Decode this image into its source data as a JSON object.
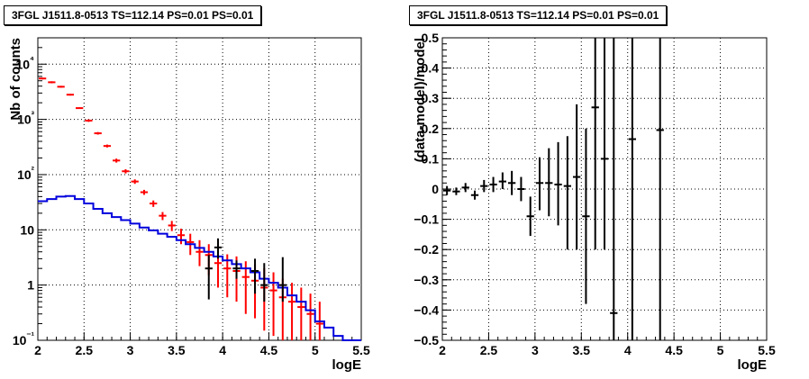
{
  "chart_data": [
    {
      "type": "step",
      "title": "3FGL J1511.8-0513 TS=112.14 PS=0.01 PS=0.01",
      "xlabel": "logE",
      "ylabel": "Nb of counts",
      "xlim": [
        2,
        5.5
      ],
      "ylim": [
        0.1,
        30000
      ],
      "yscale": "log",
      "grid": true,
      "x_ticks": [
        "2",
        "2.5",
        "3",
        "3.5",
        "4",
        "4.5",
        "5",
        "5.5"
      ],
      "y_ticks": [
        "10⁻¹",
        "1",
        "10",
        "10²",
        "10³",
        "10⁴"
      ],
      "series": [
        {
          "color": "#ff0000",
          "style": "points-with-errors",
          "x": [
            2.05,
            2.15,
            2.25,
            2.35,
            2.45,
            2.55,
            2.65,
            2.75,
            2.85,
            2.95,
            3.05,
            3.15,
            3.25,
            3.35,
            3.45,
            3.55,
            3.65,
            3.75,
            3.85,
            3.95,
            4.05,
            4.15,
            4.25,
            4.35,
            4.45,
            4.55,
            4.65,
            4.75,
            4.85,
            4.95,
            5.05
          ],
          "y": [
            5500,
            4700,
            3900,
            2800,
            1600,
            950,
            560,
            330,
            180,
            115,
            75,
            48,
            30,
            18,
            12,
            8,
            6,
            4,
            3.5,
            2.5,
            2,
            1.8,
            1.4,
            1.2,
            0.9,
            0.8,
            0.6,
            0.5,
            0.4,
            0.3,
            0.2
          ],
          "ylo": [
            5300,
            4500,
            3750,
            2700,
            1550,
            900,
            530,
            310,
            165,
            105,
            68,
            43,
            26,
            15,
            9.5,
            5.5,
            3.5,
            2.2,
            1.5,
            0.9,
            0.6,
            0.5,
            0.3,
            0.25,
            0.15,
            0.12,
            0.1,
            0.1,
            0.1,
            0.1,
            0.1
          ],
          "yhi": [
            5700,
            4900,
            4050,
            2900,
            1650,
            1000,
            590,
            350,
            195,
            125,
            82,
            53,
            34,
            21,
            14.5,
            10.5,
            8.5,
            6.5,
            5.5,
            4.3,
            3.6,
            3.3,
            2.7,
            2.4,
            2.0,
            1.7,
            1.3,
            1.1,
            0.9,
            0.7,
            0.5
          ]
        },
        {
          "color": "#0000dd",
          "style": "step",
          "x": [
            2.05,
            2.15,
            2.25,
            2.35,
            2.45,
            2.55,
            2.65,
            2.75,
            2.85,
            2.95,
            3.05,
            3.15,
            3.25,
            3.35,
            3.45,
            3.55,
            3.65,
            3.75,
            3.85,
            3.95,
            4.05,
            4.15,
            4.25,
            4.35,
            4.45,
            4.55,
            4.65,
            4.75,
            4.85,
            4.95,
            5.05,
            5.15,
            5.25,
            5.35,
            5.45
          ],
          "y": [
            33,
            36,
            40,
            41,
            36,
            30,
            24,
            20,
            17,
            15,
            13,
            11,
            9.8,
            8.5,
            7.5,
            6.5,
            5.5,
            4.7,
            4,
            3.3,
            2.8,
            2.4,
            2,
            1.7,
            1.3,
            1.1,
            0.9,
            0.65,
            0.5,
            0.35,
            0.22,
            0.17,
            0.12,
            0.1,
            0.1
          ]
        },
        {
          "color": "#000000",
          "style": "points-with-errors",
          "x": [
            3.85,
            3.95,
            4.15,
            4.35,
            4.45,
            4.65
          ],
          "y": [
            2,
            4.8,
            2,
            1.8,
            1,
            1
          ],
          "ylo": [
            0.55,
            3,
            1.3,
            0.7,
            0.5,
            0.5
          ],
          "yhi": [
            3.5,
            7,
            2.8,
            3,
            2.5,
            3.2
          ]
        }
      ]
    },
    {
      "type": "scatter",
      "title": "3FGL J1511.8-0513 TS=112.14 PS=0.01 PS=0.01",
      "xlabel": "logE",
      "ylabel": "(data-model)/model",
      "xlim": [
        2,
        5.5
      ],
      "ylim": [
        -0.5,
        0.5
      ],
      "grid": true,
      "x_ticks": [
        "2",
        "2.5",
        "3",
        "3.5",
        "4",
        "4.5",
        "5",
        "5.5"
      ],
      "y_ticks": [
        "−0.5",
        "−0.4",
        "−0.3",
        "−0.2",
        "−0.1",
        "0",
        "0.1",
        "0.2",
        "0.3",
        "0.4",
        "0.5"
      ],
      "series": [
        {
          "color": "#000000",
          "x": [
            2.05,
            2.15,
            2.25,
            2.35,
            2.45,
            2.55,
            2.65,
            2.75,
            2.85,
            2.95,
            3.05,
            3.15,
            3.25,
            3.35,
            3.45,
            3.55,
            3.65,
            3.75,
            3.85,
            4.05,
            4.35
          ],
          "y": [
            -0.005,
            -0.008,
            0.005,
            -0.02,
            0.01,
            0.015,
            0.025,
            0.02,
            0.0,
            -0.09,
            0.02,
            0.02,
            0.015,
            0.01,
            0.04,
            -0.09,
            0.27,
            0.1,
            -0.41,
            0.165,
            0.195
          ],
          "ylo": [
            -0.02,
            -0.02,
            -0.01,
            -0.035,
            -0.01,
            -0.01,
            0.0,
            -0.02,
            -0.04,
            -0.155,
            -0.07,
            -0.09,
            -0.12,
            -0.2,
            -0.2,
            -0.38,
            -0.2,
            -0.2,
            -0.5,
            -0.5,
            -0.5
          ],
          "yhi": [
            0.01,
            0.005,
            0.02,
            -0.005,
            0.03,
            0.04,
            0.055,
            0.06,
            0.04,
            -0.025,
            0.105,
            0.135,
            0.155,
            0.175,
            0.28,
            0.2,
            0.5,
            0.5,
            0.5,
            0.5,
            0.5
          ]
        }
      ]
    }
  ]
}
